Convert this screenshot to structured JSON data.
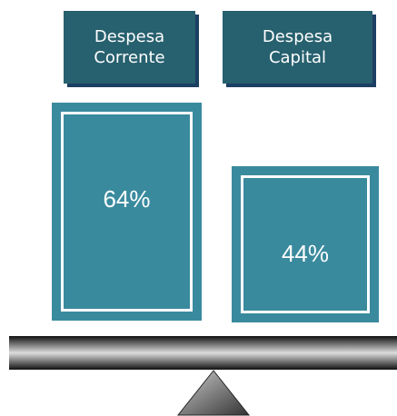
{
  "items": [
    {
      "label": "Despesa Corrente",
      "value": "64%"
    },
    {
      "label": "Despesa Capital",
      "value": "44%"
    }
  ]
}
